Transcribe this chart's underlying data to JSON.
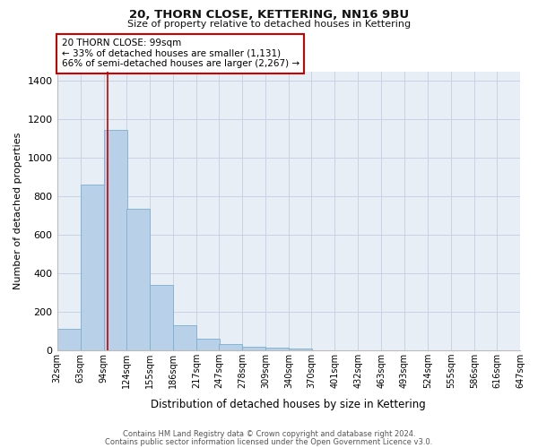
{
  "title": "20, THORN CLOSE, KETTERING, NN16 9BU",
  "subtitle": "Size of property relative to detached houses in Kettering",
  "xlabel": "Distribution of detached houses by size in Kettering",
  "ylabel": "Number of detached properties",
  "bar_values": [
    110,
    860,
    1145,
    735,
    340,
    130,
    63,
    35,
    20,
    15,
    8
  ],
  "bin_edges": [
    32,
    63,
    94,
    124,
    155,
    186,
    217,
    247,
    278,
    309,
    340,
    370
  ],
  "all_xtick_labels": [
    "32sqm",
    "63sqm",
    "94sqm",
    "124sqm",
    "155sqm",
    "186sqm",
    "217sqm",
    "247sqm",
    "278sqm",
    "309sqm",
    "340sqm",
    "370sqm",
    "401sqm",
    "432sqm",
    "463sqm",
    "493sqm",
    "524sqm",
    "555sqm",
    "586sqm",
    "616sqm",
    "647sqm"
  ],
  "bar_color": "#b8d0e8",
  "bar_edgecolor": "#7aaecf",
  "grid_color": "#c8d4e4",
  "background_color": "#e8eef6",
  "vline_x": 99,
  "vline_color": "#cc0000",
  "annotation_title": "20 THORN CLOSE: 99sqm",
  "annotation_line1": "← 33% of detached houses are smaller (1,131)",
  "annotation_line2": "66% of semi-detached houses are larger (2,267) →",
  "annotation_box_edgecolor": "#cc0000",
  "ylim": [
    0,
    1450
  ],
  "yticks": [
    0,
    200,
    400,
    600,
    800,
    1000,
    1200,
    1400
  ],
  "tick_positions": [
    32,
    63,
    94,
    124,
    155,
    186,
    217,
    247,
    278,
    309,
    340,
    370,
    401,
    432,
    463,
    493,
    524,
    555,
    586,
    616,
    647
  ],
  "xlim": [
    32,
    647
  ],
  "footnote1": "Contains HM Land Registry data © Crown copyright and database right 2024.",
  "footnote2": "Contains public sector information licensed under the Open Government Licence v3.0."
}
